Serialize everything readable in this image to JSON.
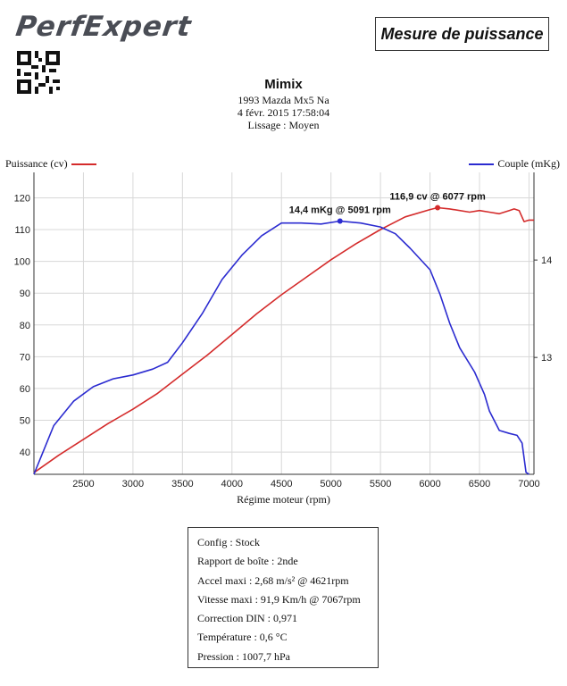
{
  "brand": {
    "logo_text": "PerfExpert",
    "title": "Mesure de puissance"
  },
  "header": {
    "name": "Mimix",
    "vehicle": "1993 Mazda  Mx5 Na",
    "datetime": "4 févr. 2015 17:58:04",
    "smoothing": "Lissage : Moyen"
  },
  "colors": {
    "power": "#d42b2b",
    "torque": "#2b2bd0",
    "grid": "#d8d8d8"
  },
  "chart_data": {
    "type": "line",
    "title": "",
    "xlabel": "Régime moteur (rpm)",
    "xlim": [
      2000,
      7050
    ],
    "x_ticks": [
      2500,
      3000,
      3500,
      4000,
      4500,
      5000,
      5500,
      6000,
      6500,
      7000
    ],
    "legend_placement": "top (split left/right)",
    "grid": true,
    "series": [
      {
        "name": "Puissance (cv)",
        "axis": "left",
        "ylim": [
          33,
          128
        ],
        "y_ticks": [
          40,
          50,
          60,
          70,
          80,
          90,
          100,
          110,
          120
        ],
        "x": [
          2000,
          2250,
          2500,
          2750,
          3000,
          3250,
          3500,
          3750,
          4000,
          4250,
          4500,
          4750,
          5000,
          5250,
          5500,
          5750,
          6000,
          6077,
          6200,
          6400,
          6500,
          6600,
          6700,
          6800,
          6850,
          6900,
          6950,
          7000,
          7050
        ],
        "y": [
          33.5,
          39,
          44,
          49,
          53.5,
          58.5,
          64.5,
          70.5,
          77,
          83.5,
          89.5,
          95,
          100.5,
          105.5,
          110,
          114,
          116.3,
          116.9,
          116.5,
          115.5,
          116,
          115.5,
          115,
          116,
          116.5,
          116,
          112.5,
          113,
          113
        ],
        "peak": {
          "x": 6077,
          "y": 116.9,
          "label": "116,9 cv @ 6077 rpm"
        }
      },
      {
        "name": "Couple (mKg)",
        "axis": "right",
        "ylim": [
          11.8,
          14.9
        ],
        "y_ticks": [
          13,
          14
        ],
        "x": [
          2000,
          2200,
          2400,
          2600,
          2800,
          3000,
          3200,
          3350,
          3500,
          3700,
          3900,
          4100,
          4300,
          4500,
          4700,
          4900,
          5091,
          5300,
          5500,
          5650,
          5800,
          6000,
          6100,
          6200,
          6300,
          6450,
          6550,
          6600,
          6700,
          6800,
          6880,
          6930,
          6970,
          7000
        ],
        "y": [
          11.8,
          12.3,
          12.55,
          12.7,
          12.78,
          12.82,
          12.88,
          12.95,
          13.15,
          13.45,
          13.8,
          14.05,
          14.25,
          14.38,
          14.38,
          14.37,
          14.4,
          14.38,
          14.34,
          14.27,
          14.12,
          13.9,
          13.65,
          13.35,
          13.1,
          12.85,
          12.62,
          12.45,
          12.25,
          12.22,
          12.2,
          12.12,
          11.82,
          11.8
        ],
        "peak": {
          "x": 5091,
          "y": 14.4,
          "label": "14,4 mKg @ 5091 rpm"
        }
      }
    ]
  },
  "info": {
    "lines": [
      "Config : Stock",
      "Rapport de boîte : 2nde",
      "Accel maxi : 2,68 m/s² @ 4621rpm",
      "Vitesse maxi : 91,9 Km/h @ 7067rpm",
      "Correction DIN : 0,971",
      "Température : 0,6 °C",
      "Pression : 1007,7 hPa"
    ]
  }
}
